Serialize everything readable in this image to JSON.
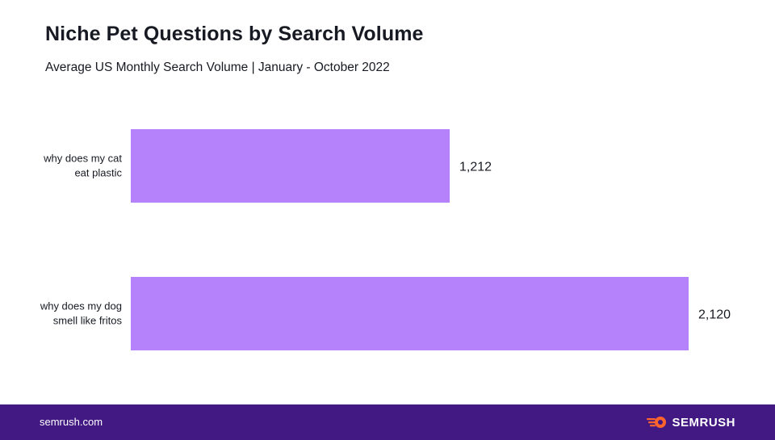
{
  "title": "Niche Pet Questions by Search Volume",
  "subtitle": "Average US Monthly Search Volume | January - October 2022",
  "footer": {
    "site": "semrush.com",
    "brand": "SEMRUSH",
    "logo_icon": "semrush-fireball-icon"
  },
  "colors": {
    "bar": "#b682fb",
    "footer_bg": "#421983",
    "logo_orange": "#ff642d",
    "text": "#171a22"
  },
  "chart_data": {
    "type": "bar",
    "orientation": "horizontal",
    "title": "Niche Pet Questions by Search Volume",
    "subtitle": "Average US Monthly Search Volume | January - October 2022",
    "categories": [
      [
        "why does my cat",
        "eat plastic"
      ],
      [
        "why does my dog",
        "smell like fritos"
      ]
    ],
    "values": [
      1212,
      2120
    ],
    "value_labels": [
      "1,212",
      "2,120"
    ],
    "xlim": [
      0,
      2120
    ],
    "grid": false,
    "legend": "none"
  }
}
